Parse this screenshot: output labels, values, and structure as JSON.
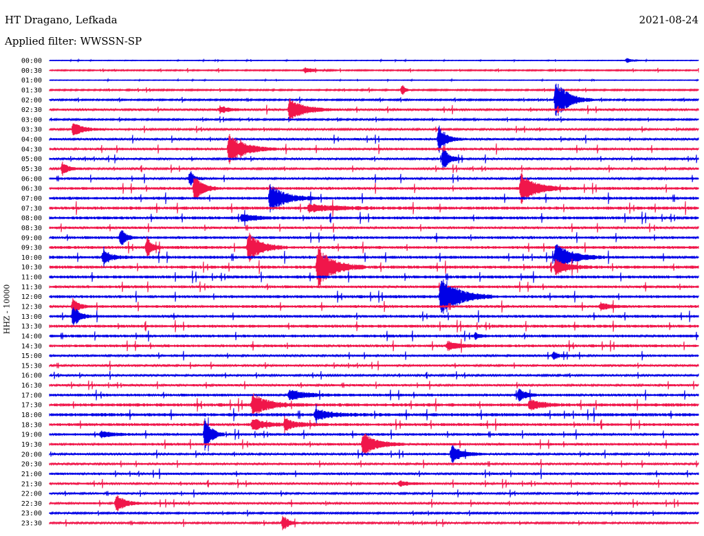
{
  "header": {
    "station": "HT Dragano, Lefkada",
    "date": "2021-08-24",
    "filter_text": "Applied filter: WWSSN-SP",
    "channel_label": "HHZ - 10000"
  },
  "colors": {
    "even": "#0000e6",
    "odd": "#f0164a",
    "bg": "#ffffff"
  },
  "chart_data": {
    "type": "seismogram",
    "title": "HT Dragano, Lefkada",
    "date": "2021-08-24",
    "filter": "WWSSN-SP",
    "ylabel": "HHZ - 10000",
    "trace_minutes": 30,
    "rows": [
      "00:00",
      "00:30",
      "01:00",
      "01:30",
      "02:00",
      "02:30",
      "03:00",
      "03:30",
      "04:00",
      "04:30",
      "05:00",
      "05:30",
      "06:00",
      "06:30",
      "07:00",
      "07:30",
      "08:00",
      "08:30",
      "09:00",
      "09:30",
      "10:00",
      "10:30",
      "11:00",
      "11:30",
      "12:00",
      "12:30",
      "13:00",
      "13:30",
      "14:00",
      "14:30",
      "15:00",
      "15:30",
      "16:00",
      "16:30",
      "17:00",
      "17:30",
      "18:00",
      "18:30",
      "19:00",
      "19:30",
      "20:00",
      "20:30",
      "21:00",
      "21:30",
      "22:00",
      "22:30",
      "23:00",
      "23:30"
    ],
    "noise_level": [
      0.3,
      0.6,
      0.3,
      0.7,
      0.8,
      1.2,
      0.8,
      1.0,
      1.2,
      1.4,
      1.1,
      1.1,
      1.3,
      1.5,
      1.6,
      1.7,
      1.6,
      1.3,
      1.5,
      1.6,
      1.6,
      1.7,
      1.6,
      1.5,
      1.6,
      1.5,
      1.5,
      1.6,
      1.5,
      1.5,
      1.3,
      1.2,
      1.1,
      1.2,
      1.5,
      1.8,
      1.8,
      1.6,
      1.4,
      1.4,
      1.2,
      1.2,
      1.3,
      1.2,
      1.1,
      1.2,
      0.9,
      1.0
    ],
    "events": [
      {
        "row": 0,
        "minute": 26.7,
        "amp": 5,
        "dur": 0.4
      },
      {
        "row": 1,
        "minute": 11.8,
        "amp": 4,
        "dur": 1.0
      },
      {
        "row": 3,
        "minute": 16.3,
        "amp": 9,
        "dur": 0.3
      },
      {
        "row": 4,
        "minute": 23.4,
        "amp": 30,
        "dur": 1.2
      },
      {
        "row": 5,
        "minute": 11.1,
        "amp": 16,
        "dur": 1.5
      },
      {
        "row": 5,
        "minute": 7.9,
        "amp": 6,
        "dur": 0.8
      },
      {
        "row": 7,
        "minute": 1.1,
        "amp": 7,
        "dur": 1.2
      },
      {
        "row": 7,
        "minute": 1.1,
        "amp": 4,
        "dur": 0.6
      },
      {
        "row": 8,
        "minute": 18.0,
        "amp": 20,
        "dur": 0.7
      },
      {
        "row": 9,
        "minute": 8.3,
        "amp": 22,
        "dur": 1.5
      },
      {
        "row": 10,
        "minute": 18.2,
        "amp": 18,
        "dur": 0.6
      },
      {
        "row": 11,
        "minute": 0.6,
        "amp": 10,
        "dur": 0.6
      },
      {
        "row": 12,
        "minute": 6.5,
        "amp": 12,
        "dur": 0.4
      },
      {
        "row": 13,
        "minute": 6.7,
        "amp": 20,
        "dur": 0.8
      },
      {
        "row": 13,
        "minute": 21.8,
        "amp": 22,
        "dur": 1.5
      },
      {
        "row": 14,
        "minute": 10.2,
        "amp": 20,
        "dur": 1.5
      },
      {
        "row": 15,
        "minute": 12.0,
        "amp": 6,
        "dur": 2.5
      },
      {
        "row": 16,
        "minute": 8.9,
        "amp": 6,
        "dur": 1.3
      },
      {
        "row": 18,
        "minute": 3.3,
        "amp": 14,
        "dur": 0.5
      },
      {
        "row": 19,
        "minute": 9.2,
        "amp": 22,
        "dur": 1.2
      },
      {
        "row": 19,
        "minute": 4.5,
        "amp": 15,
        "dur": 0.5
      },
      {
        "row": 20,
        "minute": 23.4,
        "amp": 22,
        "dur": 1.5
      },
      {
        "row": 20,
        "minute": 2.5,
        "amp": 10,
        "dur": 0.8
      },
      {
        "row": 21,
        "minute": 12.4,
        "amp": 30,
        "dur": 1.5
      },
      {
        "row": 21,
        "minute": 23.4,
        "amp": 12,
        "dur": 1.2
      },
      {
        "row": 24,
        "minute": 18.1,
        "amp": 32,
        "dur": 1.6
      },
      {
        "row": 25,
        "minute": 1.1,
        "amp": 14,
        "dur": 0.5
      },
      {
        "row": 25,
        "minute": 25.5,
        "amp": 6,
        "dur": 0.8
      },
      {
        "row": 26,
        "minute": 1.1,
        "amp": 18,
        "dur": 0.6
      },
      {
        "row": 28,
        "minute": 19.7,
        "amp": 5,
        "dur": 0.4
      },
      {
        "row": 29,
        "minute": 18.4,
        "amp": 6,
        "dur": 1.5
      },
      {
        "row": 30,
        "minute": 23.3,
        "amp": 6,
        "dur": 0.5
      },
      {
        "row": 34,
        "minute": 11.1,
        "amp": 8,
        "dur": 1.5
      },
      {
        "row": 34,
        "minute": 21.7,
        "amp": 10,
        "dur": 0.6
      },
      {
        "row": 35,
        "minute": 9.4,
        "amp": 16,
        "dur": 1.5
      },
      {
        "row": 35,
        "minute": 22.2,
        "amp": 8,
        "dur": 1.2
      },
      {
        "row": 36,
        "minute": 12.3,
        "amp": 8,
        "dur": 1.5
      },
      {
        "row": 37,
        "minute": 9.4,
        "amp": 10,
        "dur": 1.2
      },
      {
        "row": 37,
        "minute": 10.9,
        "amp": 8,
        "dur": 1.2
      },
      {
        "row": 38,
        "minute": 7.2,
        "amp": 30,
        "dur": 0.6
      },
      {
        "row": 38,
        "minute": 2.4,
        "amp": 5,
        "dur": 1.0
      },
      {
        "row": 39,
        "minute": 14.5,
        "amp": 18,
        "dur": 1.3
      },
      {
        "row": 40,
        "minute": 18.6,
        "amp": 14,
        "dur": 1.0
      },
      {
        "row": 43,
        "minute": 16.2,
        "amp": 4,
        "dur": 1.0
      },
      {
        "row": 45,
        "minute": 3.1,
        "amp": 14,
        "dur": 0.8
      },
      {
        "row": 47,
        "minute": 10.8,
        "amp": 14,
        "dur": 0.5
      }
    ]
  }
}
